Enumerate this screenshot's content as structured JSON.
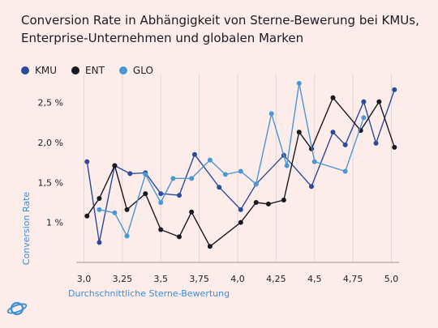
{
  "title": "Conversion Rate in Abhängigkeit von Sterne-Bewerung bei KMUs, Enterprise-Unternehmen und globalen Marken",
  "chart_data": {
    "type": "line",
    "title": "Conversion Rate in Abhängigkeit von Sterne-Bewerung bei KMUs, Enterprise-Unternehmen und globalen Marken",
    "xlabel": "Durchschnittliche Sterne-Bewertung",
    "ylabel": "Conversion Rate",
    "xlim": [
      2.95,
      5.05
    ],
    "ylim": [
      0.5,
      2.85
    ],
    "x_ticks": [
      3.0,
      3.25,
      3.5,
      3.75,
      4.0,
      4.25,
      4.5,
      4.75,
      5.0
    ],
    "x_tick_labels": [
      "3,0",
      "3,25",
      "3,5",
      "3,75",
      "4,0",
      "4,25",
      "4,5",
      "4,75",
      "5,0"
    ],
    "y_ticks": [
      1.0,
      1.5,
      2.0,
      2.5
    ],
    "y_tick_labels": [
      "1 %",
      "1,5 %",
      "2,0 %",
      "2,5 %"
    ],
    "grid": "vertical",
    "legend_position": "top-left",
    "series": [
      {
        "name": "KMU",
        "color": "#2c4a9a",
        "points": [
          [
            3.02,
            1.76
          ],
          [
            3.1,
            0.75
          ],
          [
            3.2,
            1.71
          ],
          [
            3.3,
            1.61
          ],
          [
            3.4,
            1.62
          ],
          [
            3.5,
            1.36
          ],
          [
            3.62,
            1.34
          ],
          [
            3.72,
            1.85
          ],
          [
            3.88,
            1.44
          ],
          [
            4.02,
            1.16
          ],
          [
            4.12,
            1.48
          ],
          [
            4.3,
            1.84
          ],
          [
            4.48,
            1.45
          ],
          [
            4.62,
            2.13
          ],
          [
            4.7,
            1.97
          ],
          [
            4.82,
            2.51
          ],
          [
            4.9,
            1.99
          ],
          [
            5.02,
            2.66
          ]
        ]
      },
      {
        "name": "ENT",
        "color": "#191922",
        "points": [
          [
            3.02,
            1.08
          ],
          [
            3.1,
            1.3
          ],
          [
            3.2,
            1.71
          ],
          [
            3.28,
            1.16
          ],
          [
            3.4,
            1.36
          ],
          [
            3.5,
            0.91
          ],
          [
            3.62,
            0.82
          ],
          [
            3.7,
            1.13
          ],
          [
            3.82,
            0.7
          ],
          [
            4.02,
            1.0
          ],
          [
            4.12,
            1.25
          ],
          [
            4.2,
            1.23
          ],
          [
            4.3,
            1.28
          ],
          [
            4.4,
            2.13
          ],
          [
            4.48,
            1.92
          ],
          [
            4.62,
            2.56
          ],
          [
            4.8,
            2.15
          ],
          [
            4.92,
            2.51
          ],
          [
            5.02,
            1.94
          ]
        ]
      },
      {
        "name": "GLO",
        "color": "#4a97d6",
        "points": [
          [
            3.1,
            1.16
          ],
          [
            3.2,
            1.12
          ],
          [
            3.28,
            0.83
          ],
          [
            3.4,
            1.6
          ],
          [
            3.5,
            1.25
          ],
          [
            3.58,
            1.55
          ],
          [
            3.7,
            1.55
          ],
          [
            3.82,
            1.78
          ],
          [
            3.92,
            1.6
          ],
          [
            4.02,
            1.64
          ],
          [
            4.12,
            1.48
          ],
          [
            4.22,
            2.36
          ],
          [
            4.32,
            1.71
          ],
          [
            4.4,
            2.74
          ],
          [
            4.5,
            1.76
          ],
          [
            4.7,
            1.64
          ],
          [
            4.82,
            2.31
          ]
        ]
      }
    ]
  }
}
